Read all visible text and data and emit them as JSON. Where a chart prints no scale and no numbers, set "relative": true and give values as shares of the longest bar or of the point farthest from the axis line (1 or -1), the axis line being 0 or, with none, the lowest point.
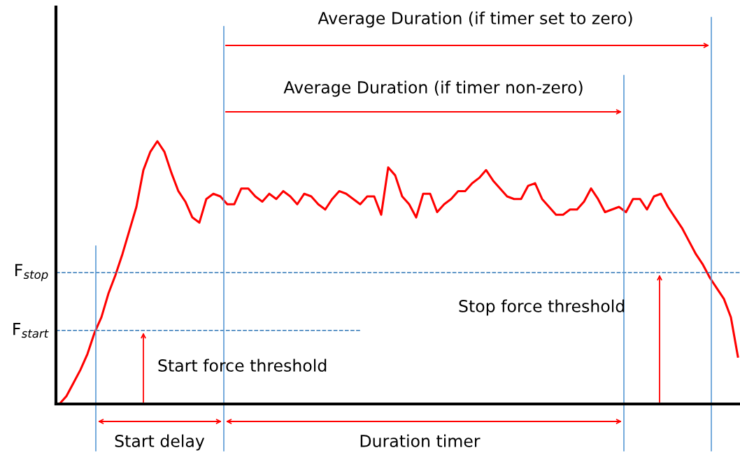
{
  "chart_data": {
    "type": "line",
    "relative": true,
    "categories": [
      null,
      null,
      null,
      null,
      null,
      null,
      null,
      null,
      null,
      null,
      null,
      null,
      null,
      null,
      null,
      null,
      null,
      null,
      null,
      null,
      null,
      null,
      null,
      null,
      null,
      null,
      null,
      null,
      null,
      null,
      null,
      null,
      null,
      null,
      null,
      null,
      null,
      null,
      null,
      null,
      null,
      null,
      null,
      null,
      null,
      null,
      null,
      null,
      null,
      null,
      null,
      null,
      null,
      null,
      null,
      null,
      null,
      null,
      null,
      null,
      null,
      null,
      null,
      null,
      null,
      null,
      null,
      null,
      null,
      null,
      null,
      null,
      null,
      null,
      null,
      null,
      null,
      null,
      null,
      null,
      null,
      null,
      null,
      null,
      null,
      null,
      null,
      null,
      null,
      null,
      null,
      null,
      null,
      null,
      null,
      null,
      null,
      null
    ],
    "series": [
      {
        "color": "#ff0000",
        "values": [
          0,
          0.03,
          0.08,
          0.13,
          0.19,
          0.27,
          0.33,
          0.42,
          0.49,
          0.57,
          0.66,
          0.75,
          0.89,
          0.96,
          1,
          0.96,
          0.88,
          0.81,
          0.77,
          0.71,
          0.69,
          0.78,
          0.8,
          0.79,
          0.76,
          0.76,
          0.82,
          0.82,
          0.79,
          0.77,
          0.8,
          0.78,
          0.81,
          0.79,
          0.76,
          0.8,
          0.79,
          0.76,
          0.74,
          0.78,
          0.81,
          0.8,
          0.78,
          0.76,
          0.79,
          0.79,
          0.72,
          0.9,
          0.87,
          0.79,
          0.76,
          0.71,
          0.8,
          0.8,
          0.73,
          0.76,
          0.78,
          0.81,
          0.81,
          0.84,
          0.86,
          0.89,
          0.85,
          0.82,
          0.79,
          0.78,
          0.78,
          0.83,
          0.84,
          0.78,
          0.75,
          0.72,
          0.72,
          0.74,
          0.74,
          0.77,
          0.82,
          0.78,
          0.73,
          0.74,
          0.75,
          0.73,
          0.78,
          0.78,
          0.74,
          0.79,
          0.8,
          0.75,
          0.71,
          0.67,
          0.62,
          0.57,
          0.53,
          0.48,
          0.44,
          0.4,
          0.33,
          0.18
        ]
      }
    ],
    "ref_lines": [
      {
        "axis": "y",
        "value": 0.5,
        "label": "F$_{stop}$",
        "color": "#2e75b6",
        "line_style": "dashed"
      },
      {
        "axis": "y",
        "value": 0.28,
        "label": "F$_{start}$",
        "color": "#2e75b6",
        "line_style": "dashed"
      }
    ],
    "annotations": [
      "Average Duration (if timer set to zero)",
      "Average Duration (if timer non-zero)",
      "Start force threshold",
      "Stop force threshold",
      "Start delay",
      "Duration timer"
    ]
  }
}
